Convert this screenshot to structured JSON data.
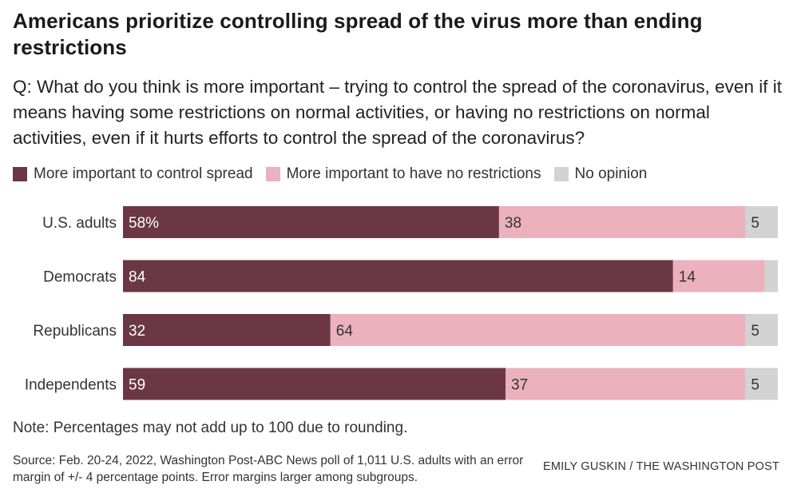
{
  "title": "Americans prioritize controlling spread of the virus more than ending restrictions",
  "question": "Q: What do you think is more important – trying to control the spread of the coronavirus, even if it means having some restrictions on normal activities, or having no restrictions on normal activities, even if it hurts efforts to control the spread of the coronavirus?",
  "note": "Note: Percentages may not add up to 100 due to rounding.",
  "source": "Source: Feb. 20-24, 2022, Washington Post-ABC News poll of 1,011 U.S. adults with an error margin of +/- 4 percentage points. Error margins larger among subgroups.",
  "credit": "EMILY GUSKIN / THE WASHINGTON POST",
  "chart_data": {
    "type": "bar",
    "orientation": "horizontal",
    "stacked": true,
    "categories": [
      "U.S. adults",
      "Democrats",
      "Republicans",
      "Independents"
    ],
    "series": [
      {
        "name": "More important to control spread",
        "color": "#6b3744",
        "values": [
          58,
          84,
          32,
          59
        ],
        "labels": [
          "58%",
          "84",
          "32",
          "59"
        ],
        "label_color": "#ffffff"
      },
      {
        "name": "More important to have no restrictions",
        "color": "#ebb1bd",
        "values": [
          38,
          14,
          64,
          37
        ],
        "labels": [
          "38",
          "14",
          "64",
          "37"
        ],
        "label_color": "#333333"
      },
      {
        "name": "No opinion",
        "color": "#d3d3d3",
        "values": [
          5,
          2,
          5,
          5
        ],
        "labels": [
          "5",
          "",
          "5",
          "5"
        ],
        "label_color": "#333333"
      }
    ],
    "legend_position": "top-left",
    "grid": false
  }
}
